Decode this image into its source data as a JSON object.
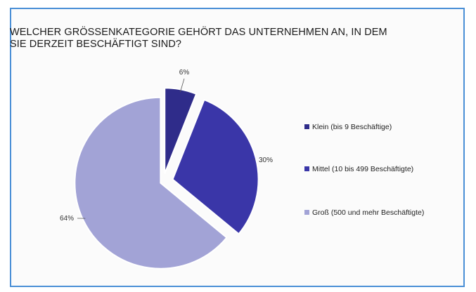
{
  "chart_data": {
    "type": "pie",
    "title": "WELCHER GRÖSSENKATEGORIE GEHÖRT DAS UNTERNEHMEN AN, IN DEM SIE DERZEIT BESCHÄFTIGT SIND?",
    "unit": "%",
    "exploded": true,
    "legend_position": "right",
    "slices": [
      {
        "label": "Klein (bis 9 Beschäftige)",
        "value": 6,
        "value_label": "6%",
        "color": "#2f2c8a"
      },
      {
        "label": "Mittel (10 bis 499 Beschäftigte)",
        "value": 30,
        "value_label": "30%",
        "color": "#3a36a8"
      },
      {
        "label": "Groß (500 und mehr Beschäftigte)",
        "value": 64,
        "value_label": "64%",
        "color": "#a2a3d6"
      }
    ]
  }
}
